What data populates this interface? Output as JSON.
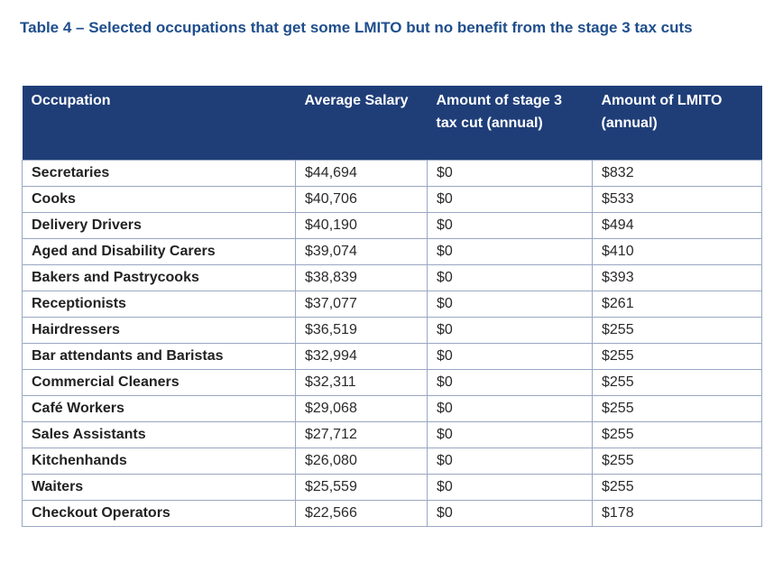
{
  "title": "Table 4 – Selected occupations that get some LMITO but no benefit from the stage 3 tax cuts",
  "table": {
    "headers": [
      "Occupation",
      "Average Salary",
      "Amount of stage 3 tax cut (annual)",
      "Amount of LMITO (annual)"
    ],
    "rows": [
      [
        "Secretaries",
        "$44,694",
        "$0",
        "$832"
      ],
      [
        "Cooks",
        "$40,706",
        "$0",
        "$533"
      ],
      [
        "Delivery Drivers",
        "$40,190",
        "$0",
        "$494"
      ],
      [
        "Aged and Disability Carers",
        "$39,074",
        "$0",
        "$410"
      ],
      [
        "Bakers and Pastrycooks",
        "$38,839",
        "$0",
        "$393"
      ],
      [
        "Receptionists",
        "$37,077",
        "$0",
        "$261"
      ],
      [
        "Hairdressers",
        "$36,519",
        "$0",
        "$255"
      ],
      [
        "Bar attendants and Baristas",
        "$32,994",
        "$0",
        "$255"
      ],
      [
        "Commercial Cleaners",
        "$32,311",
        "$0",
        "$255"
      ],
      [
        "Café Workers",
        "$29,068",
        "$0",
        "$255"
      ],
      [
        "Sales Assistants",
        "$27,712",
        "$0",
        "$255"
      ],
      [
        "Kitchenhands",
        "$26,080",
        "$0",
        "$255"
      ],
      [
        "Waiters",
        "$25,559",
        "$0",
        "$255"
      ],
      [
        "Checkout Operators",
        "$22,566",
        "$0",
        "$178"
      ]
    ]
  },
  "colors": {
    "title": "#1f4e8c",
    "header_bg": "#1f3e78",
    "header_text": "#ffffff",
    "border": "#9aa7c2"
  }
}
